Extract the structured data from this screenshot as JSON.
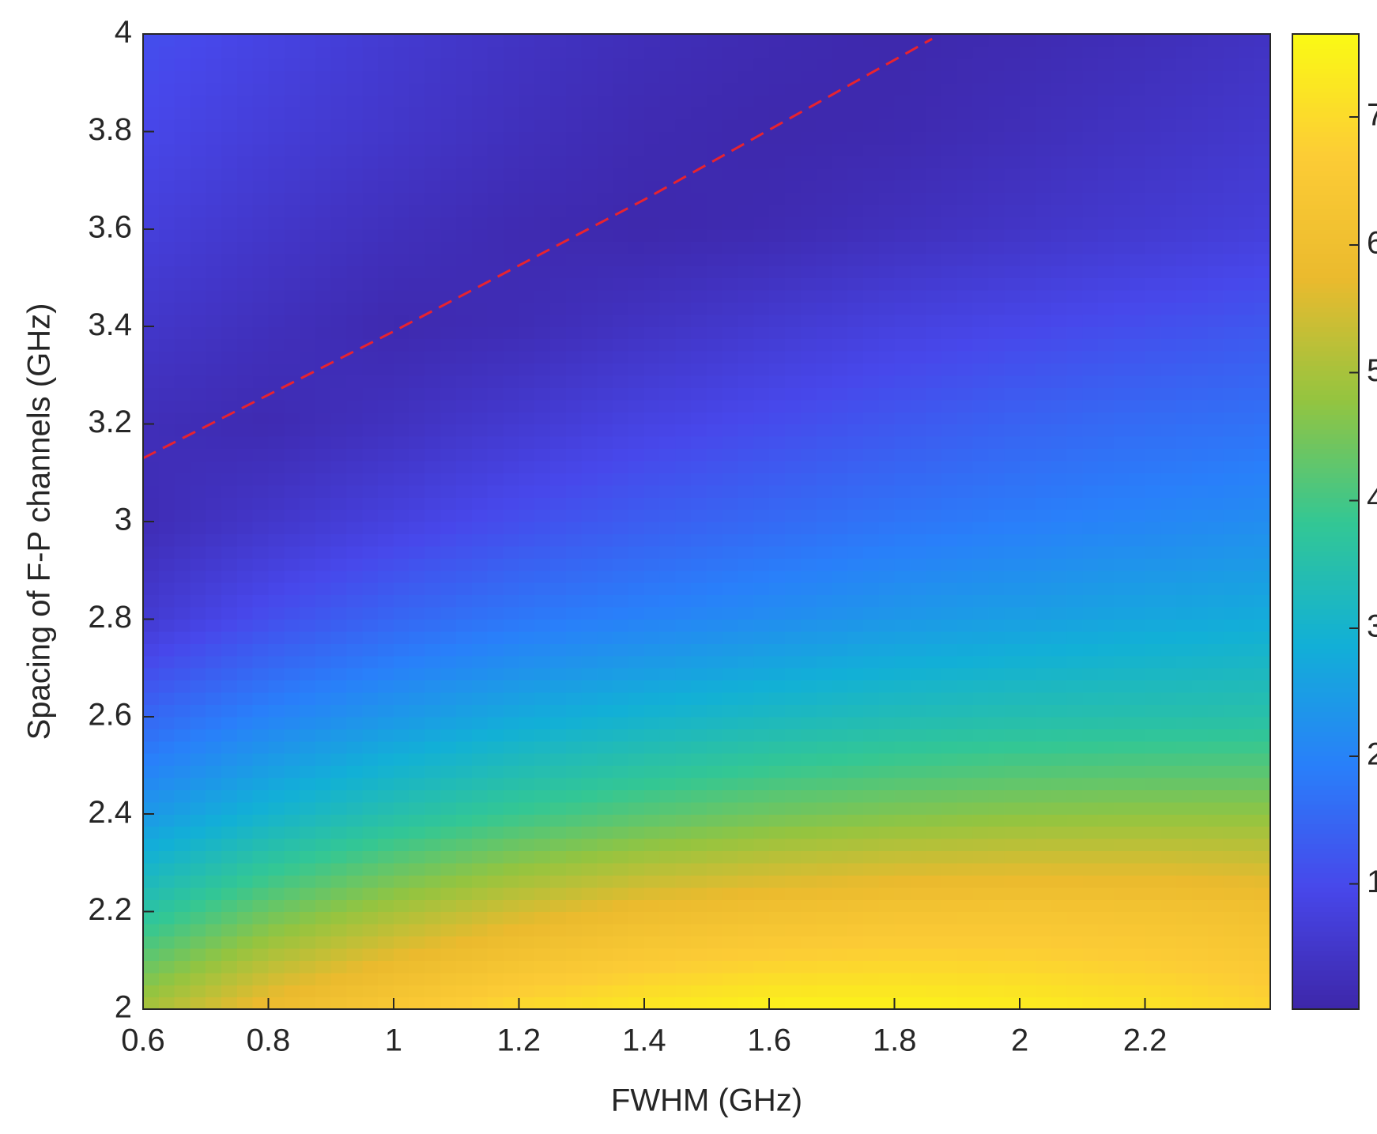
{
  "chart_data": {
    "type": "contour",
    "x_label": "FWHM (GHz)",
    "y_label": "Spacing of F-P channels (GHz)",
    "x": [
      0.6,
      0.8,
      1.0,
      1.2,
      1.4,
      1.6,
      1.8,
      2.0,
      2.2,
      2.4
    ],
    "y": [
      2.0,
      2.2,
      2.4,
      2.6,
      2.8,
      3.0,
      3.2,
      3.4,
      3.6,
      3.8,
      4.0
    ],
    "z": [
      [
        5.0,
        5.9,
        6.5,
        7.0,
        7.3,
        7.5,
        7.5,
        7.4,
        7.2,
        6.9
      ],
      [
        3.6,
        4.4,
        5.0,
        5.5,
        5.9,
        6.1,
        6.25,
        6.3,
        6.25,
        6.1
      ],
      [
        2.4,
        3.0,
        3.5,
        3.9,
        4.2,
        4.45,
        4.6,
        4.7,
        4.75,
        4.75
      ],
      [
        1.5,
        2.0,
        2.4,
        2.75,
        3.0,
        3.2,
        3.35,
        3.45,
        3.5,
        3.55
      ],
      [
        0.6,
        1.1,
        1.5,
        1.8,
        2.0,
        2.2,
        2.4,
        2.55,
        2.7,
        2.8
      ],
      [
        0.2,
        0.5,
        0.8,
        1.1,
        1.35,
        1.55,
        1.75,
        1.9,
        2.05,
        2.2
      ],
      [
        0.25,
        0.15,
        0.35,
        0.6,
        0.85,
        1.05,
        1.25,
        1.45,
        1.6,
        1.7
      ],
      [
        0.5,
        0.3,
        0.12,
        0.2,
        0.4,
        0.6,
        0.8,
        0.95,
        1.1,
        1.25
      ],
      [
        0.75,
        0.5,
        0.3,
        0.15,
        0.08,
        0.15,
        0.3,
        0.45,
        0.6,
        0.75
      ],
      [
        0.95,
        0.7,
        0.5,
        0.3,
        0.15,
        0.08,
        0.12,
        0.25,
        0.4,
        0.55
      ],
      [
        1.1,
        0.85,
        0.6,
        0.4,
        0.25,
        0.15,
        0.08,
        0.15,
        0.25,
        0.4
      ]
    ],
    "colormap": "parula",
    "optimum_line": {
      "x": [
        0.6,
        1.0,
        1.4,
        1.86
      ],
      "y": [
        3.13,
        3.39,
        3.66,
        3.99
      ],
      "color": "#e8232f"
    },
    "xlim": [
      0.6,
      2.4
    ],
    "xticks": [
      0.6,
      0.8,
      1,
      1.2,
      1.4,
      1.6,
      1.8,
      2,
      2.2
    ],
    "ylim": [
      2,
      4
    ],
    "yticks": [
      2,
      2.2,
      2.4,
      2.6,
      2.8,
      3,
      3.2,
      3.4,
      3.6,
      3.8,
      4
    ],
    "colorbar": {
      "lim": [
        0.02,
        7.65
      ],
      "ticks": [
        1,
        2,
        3,
        4,
        5,
        6,
        7
      ]
    }
  }
}
